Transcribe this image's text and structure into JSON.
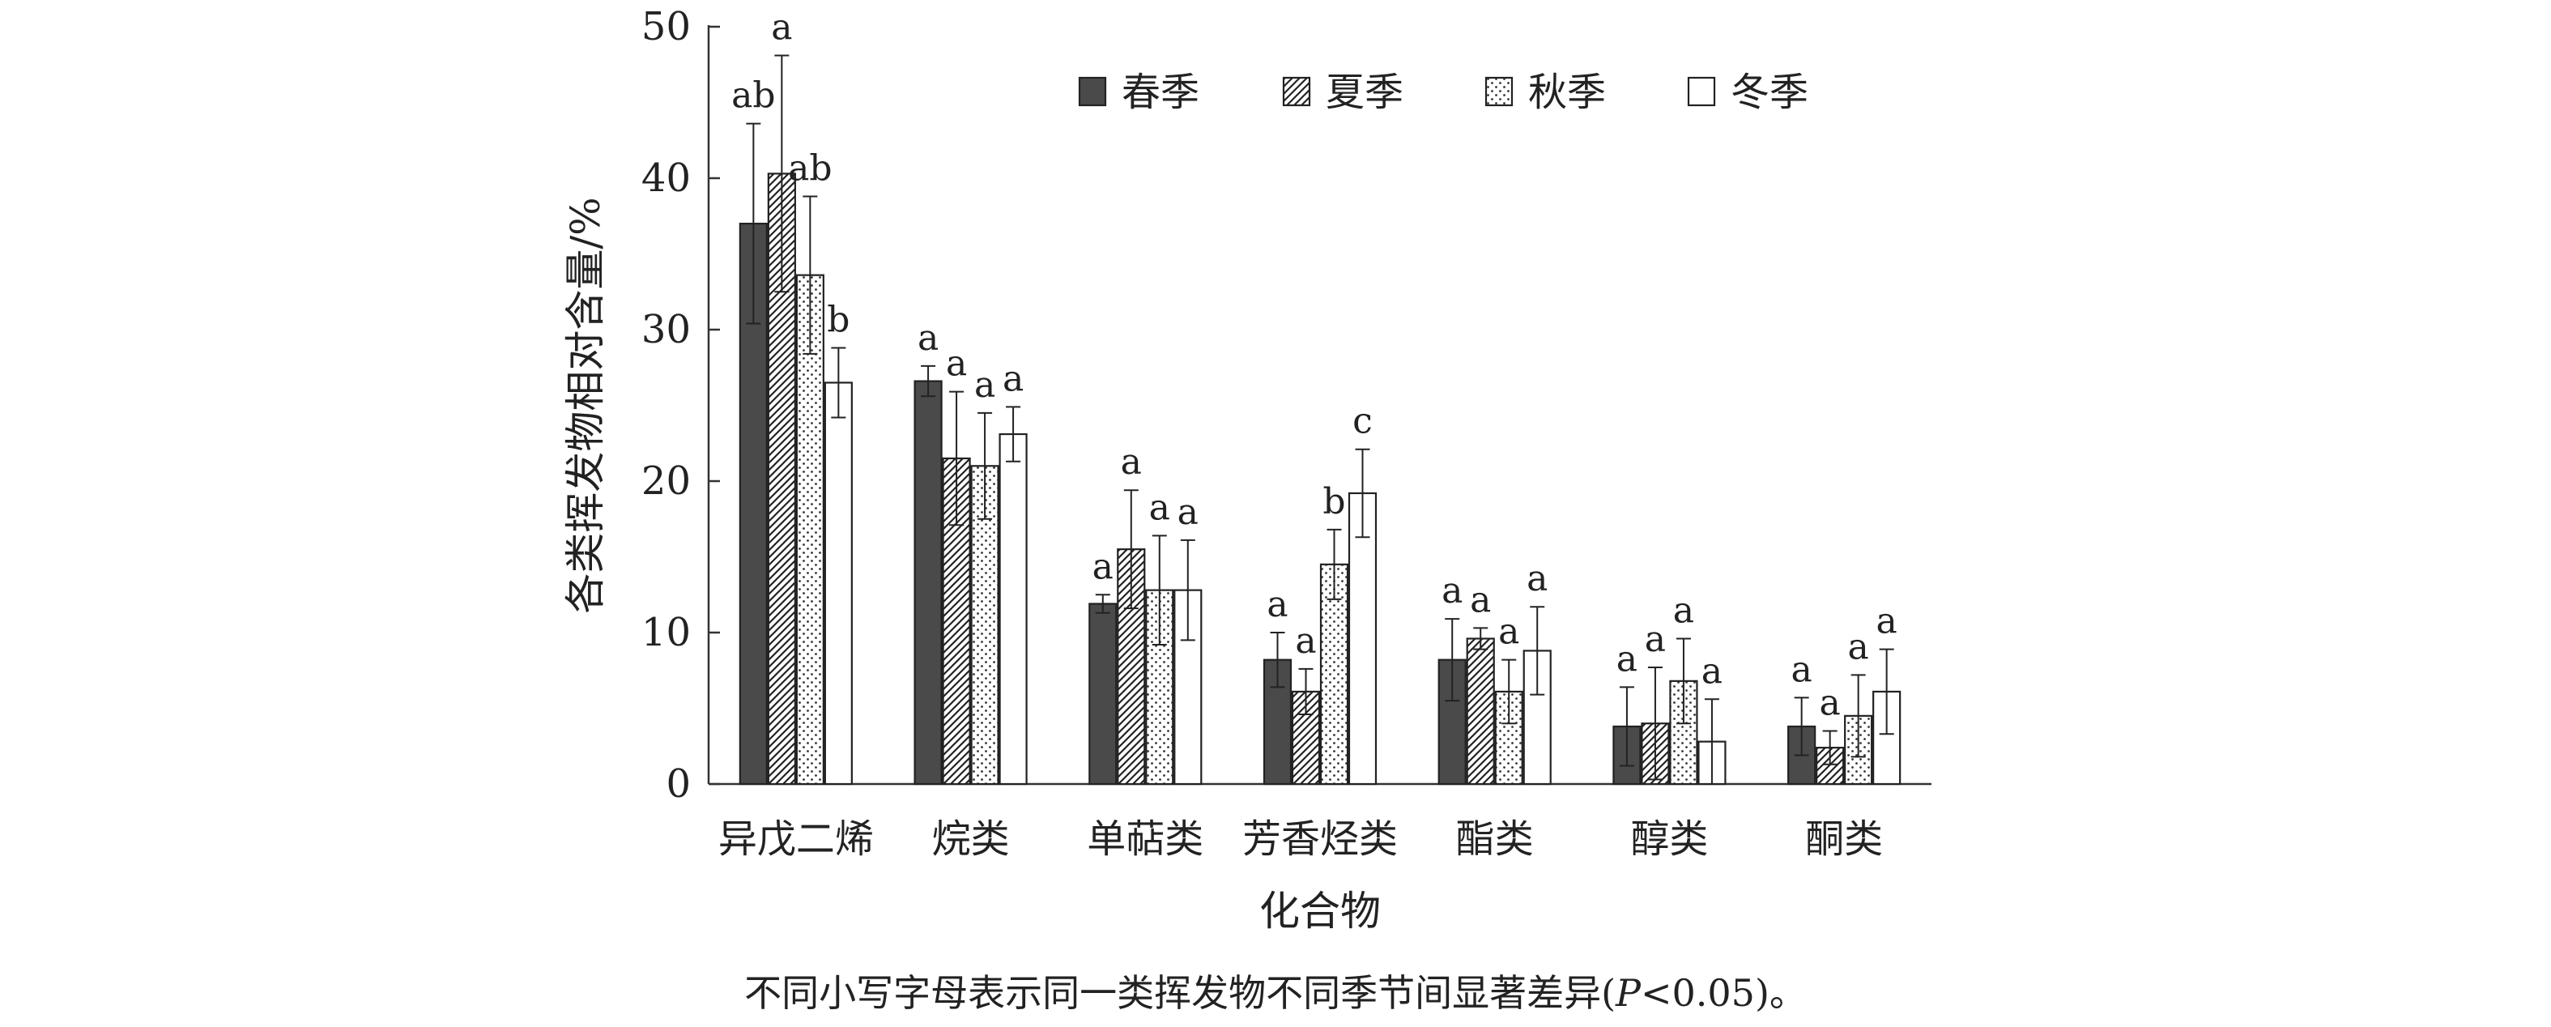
{
  "chart_data": {
    "type": "bar",
    "title": "",
    "xlabel": "化合物",
    "ylabel": "各类挥发物相对含量/%",
    "ylim": [
      0,
      50
    ],
    "yticks": [
      0,
      10,
      20,
      30,
      40,
      50
    ],
    "categories": [
      "异戊二烯",
      "烷类",
      "单萜类",
      "芳香烃类",
      "酯类",
      "醇类",
      "酮类"
    ],
    "legend_position": "top-center",
    "grid": false,
    "series": [
      {
        "name": "春季",
        "pattern": "solid-dark",
        "values": [
          37.0,
          26.6,
          11.9,
          8.2,
          8.2,
          3.8,
          3.8
        ],
        "errors": [
          6.6,
          1.0,
          0.6,
          1.8,
          2.7,
          2.6,
          1.9
        ],
        "letters": [
          "ab",
          "a",
          "a",
          "a",
          "a",
          "a",
          "a"
        ]
      },
      {
        "name": "夏季",
        "pattern": "diagonal-hatch",
        "values": [
          40.3,
          21.5,
          15.5,
          6.1,
          9.6,
          4.0,
          2.4
        ],
        "errors": [
          7.8,
          4.4,
          3.9,
          1.5,
          0.7,
          3.7,
          1.1
        ],
        "letters": [
          "a",
          "a",
          "a",
          "a",
          "a",
          "a",
          "a"
        ]
      },
      {
        "name": "秋季",
        "pattern": "dotted",
        "values": [
          33.6,
          21.0,
          12.8,
          14.5,
          6.1,
          6.8,
          4.5
        ],
        "errors": [
          5.2,
          3.5,
          3.6,
          2.3,
          2.1,
          2.8,
          2.7
        ],
        "letters": [
          "ab",
          "a",
          "a",
          "b",
          "a",
          "a",
          "a"
        ]
      },
      {
        "name": "冬季",
        "pattern": "white",
        "values": [
          26.5,
          23.1,
          12.8,
          19.2,
          8.8,
          2.8,
          6.1
        ],
        "errors": [
          2.3,
          1.8,
          3.3,
          2.9,
          2.9,
          2.8,
          2.8
        ],
        "letters": [
          "b",
          "a",
          "a",
          "c",
          "a",
          "a",
          "a"
        ]
      }
    ]
  },
  "footnote": {
    "prefix": "不同小写字母表示同一类挥发物不同季节间显著差异(",
    "p_var": "P",
    "suffix": "<0.05)。"
  },
  "colors": {
    "axis": "#333333",
    "bar_dark": "#4a4a4a",
    "bar_outline": "#222222",
    "background": "#ffffff"
  }
}
